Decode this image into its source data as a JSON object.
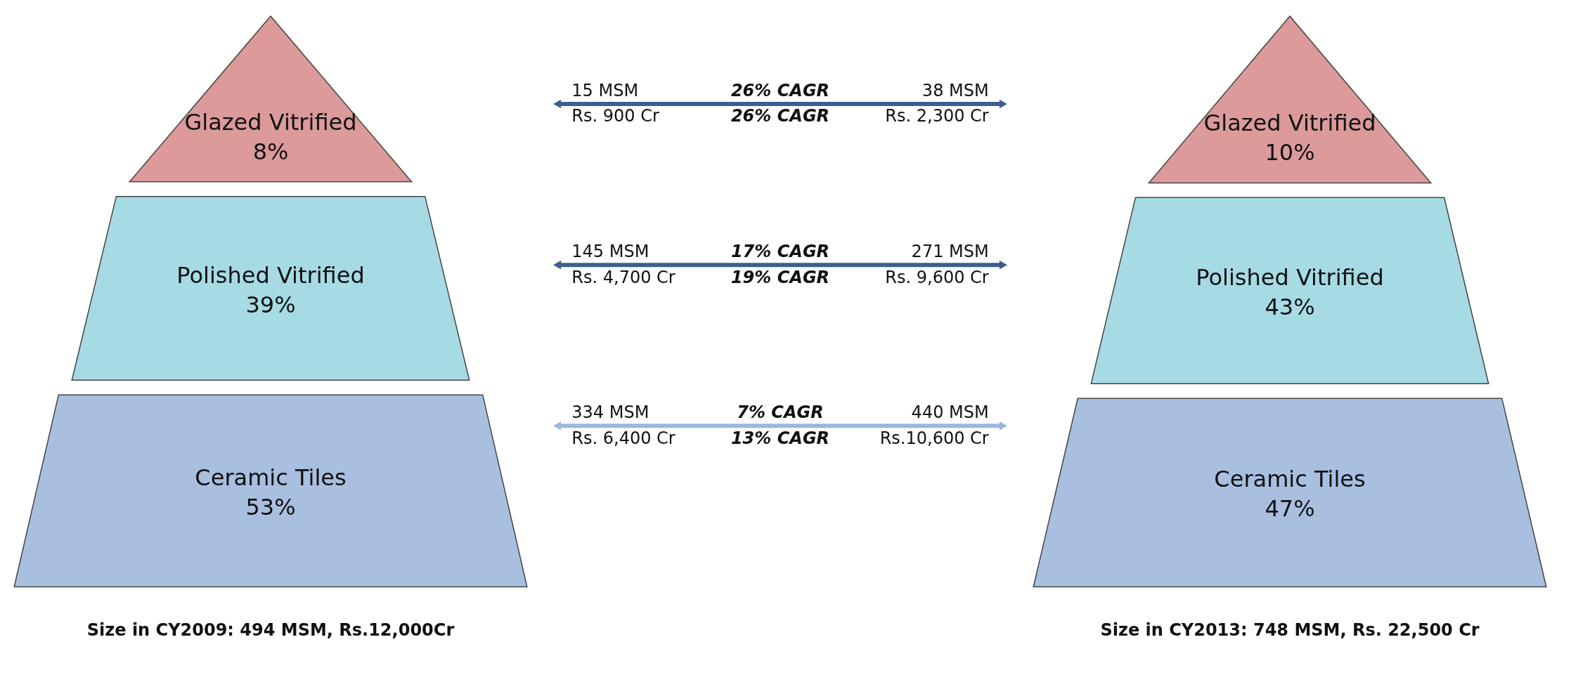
{
  "chart_data": [
    {
      "type": "other",
      "categories": [
        "Glazed Vitrified",
        "Polished Vitrified",
        "Ceramic Tiles"
      ],
      "values": [
        8,
        39,
        53
      ],
      "value_labels": [
        "8%",
        "39%",
        "53%"
      ],
      "colors": [
        "#dc9a9a",
        "#a6dbe4",
        "#a9bfe0"
      ],
      "annotations": [
        "Size in CY2009: 494 MSM, Rs.12,000Cr"
      ]
    },
    {
      "type": "other",
      "annotations": [
        "15 MSM",
        "26% CAGR",
        "38 MSM",
        "Rs. 900 Cr",
        "26% CAGR",
        "Rs. 2,300 Cr",
        "145 MSM",
        "17% CAGR",
        "271 MSM",
        "Rs. 4,700 Cr",
        "19% CAGR",
        "Rs. 9,600 Cr",
        "334 MSM",
        "7% CAGR",
        "440 MSM",
        "Rs. 6,400 Cr",
        "13% CAGR",
        "Rs.10,600 Cr"
      ],
      "colors": [
        "#3d5f8f",
        "#3d5f8f",
        "#9bb8dd"
      ]
    },
    {
      "type": "other",
      "categories": [
        "Glazed Vitrified",
        "Polished Vitrified",
        "Ceramic Tiles"
      ],
      "values": [
        10,
        43,
        47
      ],
      "value_labels": [
        "10%",
        "43%",
        "47%"
      ],
      "colors": [
        "#dc9a9a",
        "#a6dbe4",
        "#a9bfe0"
      ],
      "annotations": [
        "Size in CY2013: 748 MSM, Rs. 22,500 Cr"
      ]
    }
  ]
}
